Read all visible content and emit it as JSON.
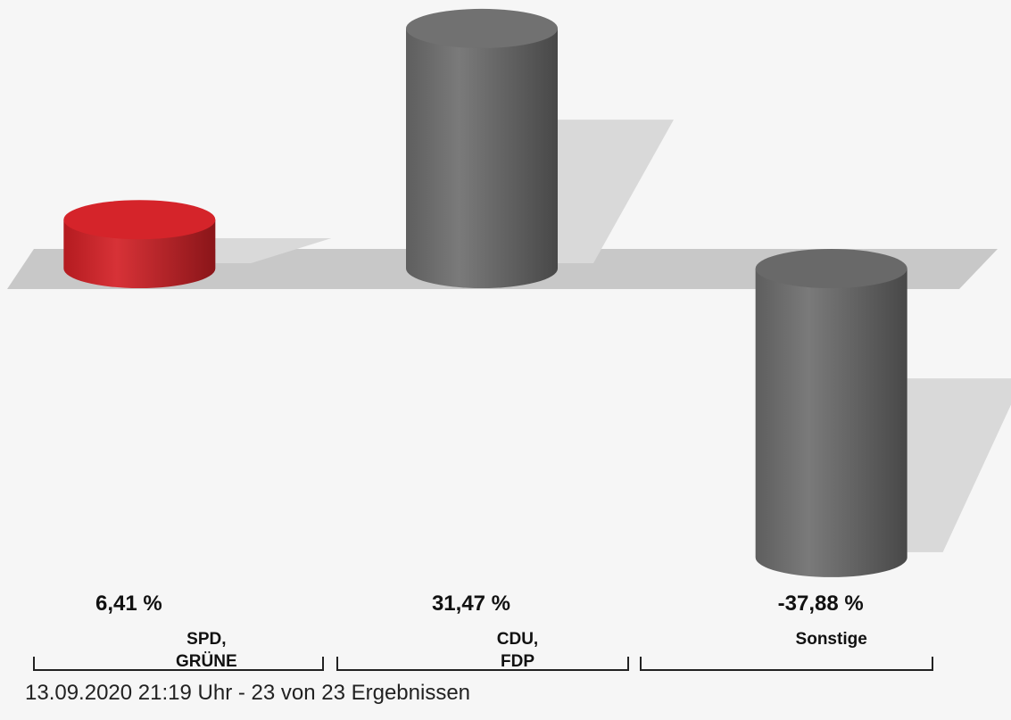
{
  "chart_data": {
    "type": "bar",
    "categories": [
      [
        "SPD,",
        "GRÜNE"
      ],
      [
        "CDU,",
        "FDP"
      ],
      [
        "Sonstige"
      ]
    ],
    "values": [
      6.41,
      31.47,
      -37.88
    ],
    "value_labels": [
      "6,41 %",
      "31,47 %",
      "-37,88 %"
    ],
    "colors": [
      "#d42026",
      "#6e6e6e",
      "#6e6e6e"
    ],
    "style": "3d-cylinder",
    "baseline": 0,
    "legend": "none",
    "grid": false
  },
  "footer": "13.09.2020 21:19 Uhr - 23 von 23 Ergebnissen"
}
